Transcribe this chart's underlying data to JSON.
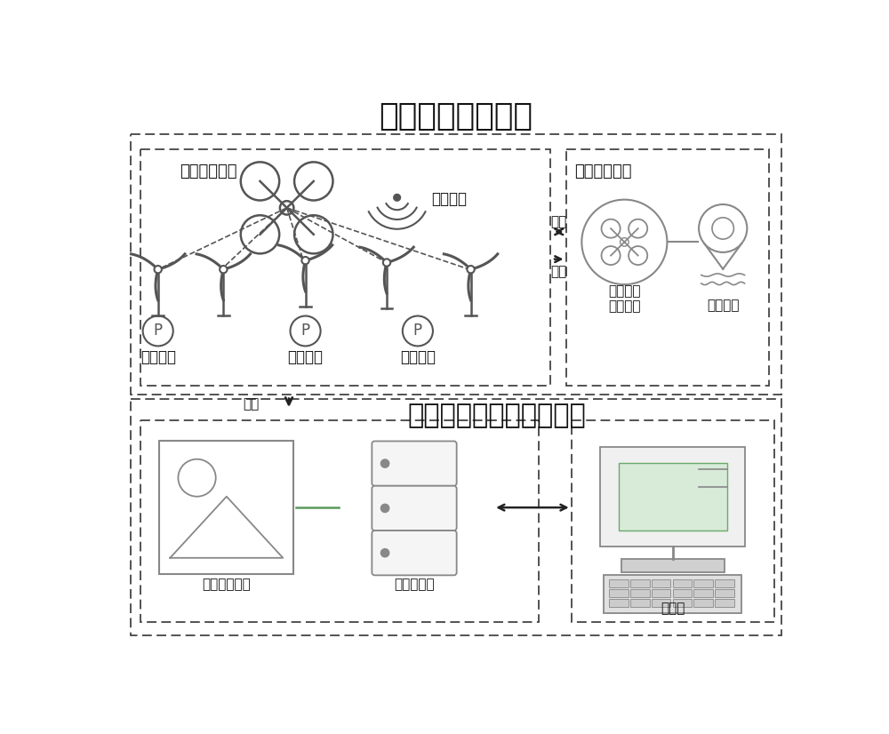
{
  "title_top": "前端数据采集系统",
  "title_bottom": "后端数据管理及处理系统",
  "label_frontend_hw": "前端硬件平台",
  "label_frontend_ctrl": "前端集控平台",
  "label_wireless": "无线网络",
  "label_shuchuan": "数传",
  "label_tuchuan": "图传",
  "label_tuchuan2": "图传",
  "label_inspection": "巡检系统\n硬件管理",
  "label_flight": "飞行管理",
  "label_airport": "自动机场",
  "label_defect": "缺陷智能识别",
  "label_database": "巡检数据库",
  "label_client": "客户端",
  "bg_color": "#ffffff",
  "line_color": "#444444",
  "gray_color": "#888888",
  "green_color": "#5a9a5a"
}
